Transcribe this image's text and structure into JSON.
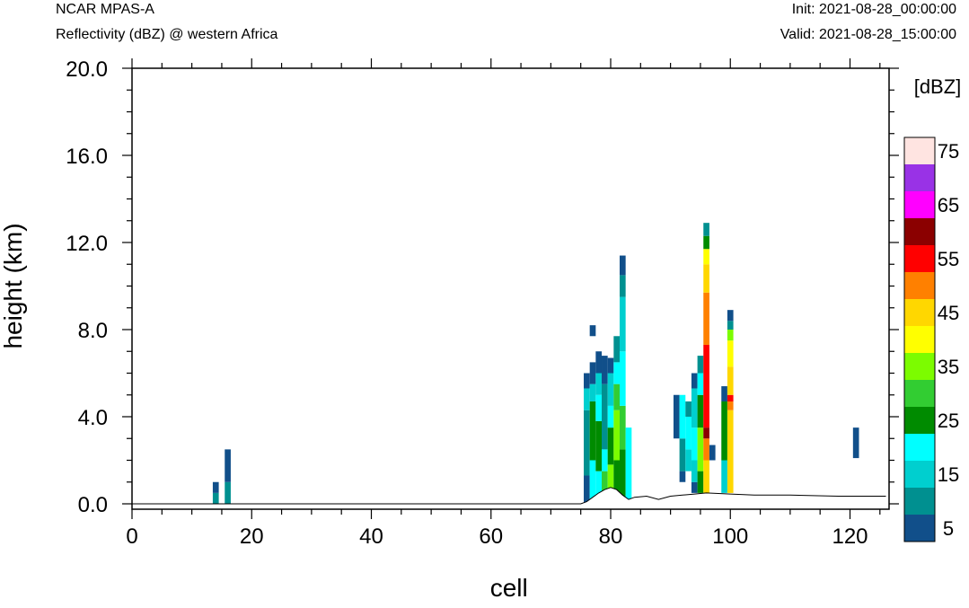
{
  "header": {
    "model": "NCAR MPAS-A",
    "subtitle": "Reflectivity (dBZ) @ western Africa",
    "init": "Init: 2021-08-28_00:00:00",
    "valid": "Valid: 2021-08-28_15:00:00"
  },
  "chart_data": {
    "type": "heatmap",
    "xlabel": "cell",
    "ylabel": "height (km)",
    "xlim": [
      0,
      126
    ],
    "ylim": [
      -0.2,
      20.0
    ],
    "x_ticks": [
      0,
      20,
      40,
      60,
      80,
      100,
      120
    ],
    "y_ticks": [
      0.0,
      4.0,
      8.0,
      12.0,
      16.0,
      20.0
    ],
    "x_tick_labels": [
      "0",
      "20",
      "40",
      "60",
      "80",
      "100",
      "120"
    ],
    "y_tick_labels": [
      "0.0",
      "4.0",
      "8.0",
      "12.0",
      "16.0",
      "20.0"
    ],
    "colorbar": {
      "units": "[dBZ]",
      "levels": [
        5,
        10,
        15,
        20,
        25,
        30,
        35,
        40,
        45,
        50,
        55,
        60,
        65,
        70,
        75
      ],
      "labels": [
        "5",
        "15",
        "25",
        "35",
        "45",
        "55",
        "65",
        "75"
      ],
      "label_levels": [
        5,
        15,
        25,
        35,
        45,
        55,
        65,
        75
      ],
      "colors": [
        "#114f8a",
        "#009090",
        "#00cfcf",
        "#00ffff",
        "#008b00",
        "#32cd32",
        "#7cfc00",
        "#ffff00",
        "#ffd700",
        "#ff8000",
        "#ff0000",
        "#8b0000",
        "#ff00ff",
        "#9932e6",
        "#ffe4e1"
      ]
    },
    "terrain": [
      [
        0,
        0
      ],
      [
        75,
        0
      ],
      [
        76,
        0.1
      ],
      [
        77,
        0.3
      ],
      [
        78,
        0.5
      ],
      [
        79,
        0.65
      ],
      [
        80,
        0.75
      ],
      [
        81,
        0.65
      ],
      [
        82,
        0.4
      ],
      [
        83,
        0.2
      ],
      [
        84,
        0.3
      ],
      [
        86,
        0.35
      ],
      [
        88,
        0.2
      ],
      [
        90,
        0.35
      ],
      [
        92,
        0.4
      ],
      [
        94,
        0.45
      ],
      [
        96,
        0.5
      ],
      [
        100,
        0.45
      ],
      [
        104,
        0.4
      ],
      [
        110,
        0.4
      ],
      [
        118,
        0.35
      ],
      [
        126,
        0.35
      ]
    ],
    "columns": [
      {
        "x": 14,
        "segments": [
          [
            0,
            0.5,
            10
          ],
          [
            0.5,
            1.0,
            5
          ]
        ]
      },
      {
        "x": 16,
        "segments": [
          [
            0,
            1.0,
            10
          ],
          [
            1.0,
            2.5,
            5
          ]
        ]
      },
      {
        "x": 76,
        "segments": [
          [
            0,
            1.3,
            5
          ],
          [
            1.3,
            4.3,
            10
          ],
          [
            4.3,
            5.3,
            15
          ],
          [
            5.3,
            6.0,
            5
          ]
        ]
      },
      {
        "x": 77,
        "segments": [
          [
            0,
            2.0,
            20
          ],
          [
            2.0,
            4.7,
            25
          ],
          [
            4.7,
            5.5,
            15
          ],
          [
            5.5,
            6.5,
            5
          ],
          [
            7.7,
            8.2,
            5
          ]
        ]
      },
      {
        "x": 78,
        "segments": [
          [
            0,
            1.5,
            20
          ],
          [
            1.5,
            3.8,
            25
          ],
          [
            3.8,
            5.0,
            20
          ],
          [
            5.0,
            6.0,
            15
          ],
          [
            6.0,
            7.0,
            5
          ]
        ]
      },
      {
        "x": 79,
        "segments": [
          [
            0,
            1.5,
            30
          ],
          [
            1.5,
            2.5,
            20
          ],
          [
            2.5,
            5.5,
            10
          ],
          [
            5.5,
            6.8,
            5
          ]
        ]
      },
      {
        "x": 80,
        "segments": [
          [
            0,
            1.8,
            35
          ],
          [
            1.8,
            3.5,
            25
          ],
          [
            3.5,
            4.5,
            20
          ],
          [
            4.5,
            6.0,
            15
          ],
          [
            6.0,
            6.7,
            5
          ]
        ]
      },
      {
        "x": 81,
        "segments": [
          [
            0,
            2.0,
            25
          ],
          [
            2.0,
            4.3,
            35
          ],
          [
            4.3,
            5.5,
            30
          ],
          [
            5.5,
            6.5,
            20
          ],
          [
            6.5,
            7.7,
            10
          ]
        ]
      },
      {
        "x": 82,
        "segments": [
          [
            0,
            2.5,
            25
          ],
          [
            2.5,
            4.5,
            30
          ],
          [
            4.5,
            7.0,
            20
          ],
          [
            7.0,
            9.5,
            15
          ],
          [
            9.5,
            10.5,
            10
          ],
          [
            10.5,
            11.4,
            5
          ]
        ]
      },
      {
        "x": 83,
        "segments": [
          [
            0,
            3.5,
            20
          ]
        ]
      },
      {
        "x": 91,
        "segments": [
          [
            3.0,
            5.0,
            5
          ]
        ]
      },
      {
        "x": 92,
        "segments": [
          [
            1.0,
            1.5,
            5
          ],
          [
            1.5,
            3.0,
            10
          ],
          [
            3.0,
            5.0,
            20
          ]
        ]
      },
      {
        "x": 93,
        "segments": [
          [
            1.5,
            2.5,
            15
          ],
          [
            2.5,
            4.0,
            20
          ],
          [
            4.0,
            4.7,
            10
          ]
        ]
      },
      {
        "x": 94,
        "segments": [
          [
            0.5,
            1.0,
            5
          ],
          [
            1.0,
            2.0,
            15
          ],
          [
            2.0,
            3.5,
            20
          ],
          [
            3.5,
            5.3,
            15
          ],
          [
            5.3,
            6.0,
            5
          ]
        ]
      },
      {
        "x": 95,
        "segments": [
          [
            0.5,
            1.5,
            25
          ],
          [
            1.5,
            3.5,
            35
          ],
          [
            3.5,
            5.0,
            25
          ],
          [
            5.0,
            6.0,
            20
          ],
          [
            6.0,
            6.8,
            10
          ]
        ]
      },
      {
        "x": 96,
        "segments": [
          [
            0.5,
            2.0,
            45
          ],
          [
            2.0,
            3.0,
            50
          ],
          [
            3.0,
            3.5,
            60
          ],
          [
            3.5,
            7.3,
            55
          ],
          [
            7.3,
            9.7,
            50
          ],
          [
            9.7,
            11.0,
            45
          ],
          [
            11.0,
            11.7,
            40
          ],
          [
            11.7,
            12.3,
            25
          ],
          [
            12.3,
            12.9,
            10
          ]
        ]
      },
      {
        "x": 97,
        "segments": [
          [
            2.0,
            2.7,
            5
          ]
        ]
      },
      {
        "x": 99,
        "segments": [
          [
            0.5,
            2.0,
            15
          ],
          [
            2.0,
            4.7,
            25
          ],
          [
            4.7,
            5.4,
            5
          ]
        ]
      },
      {
        "x": 100,
        "segments": [
          [
            0.5,
            4.3,
            45
          ],
          [
            4.3,
            4.7,
            50
          ],
          [
            4.7,
            5.0,
            55
          ],
          [
            5.0,
            6.3,
            45
          ],
          [
            6.3,
            7.5,
            40
          ],
          [
            7.5,
            8.0,
            35
          ],
          [
            8.0,
            8.4,
            10
          ],
          [
            8.4,
            8.9,
            5
          ]
        ]
      },
      {
        "x": 121,
        "segments": [
          [
            2.1,
            3.5,
            5
          ]
        ]
      }
    ]
  }
}
